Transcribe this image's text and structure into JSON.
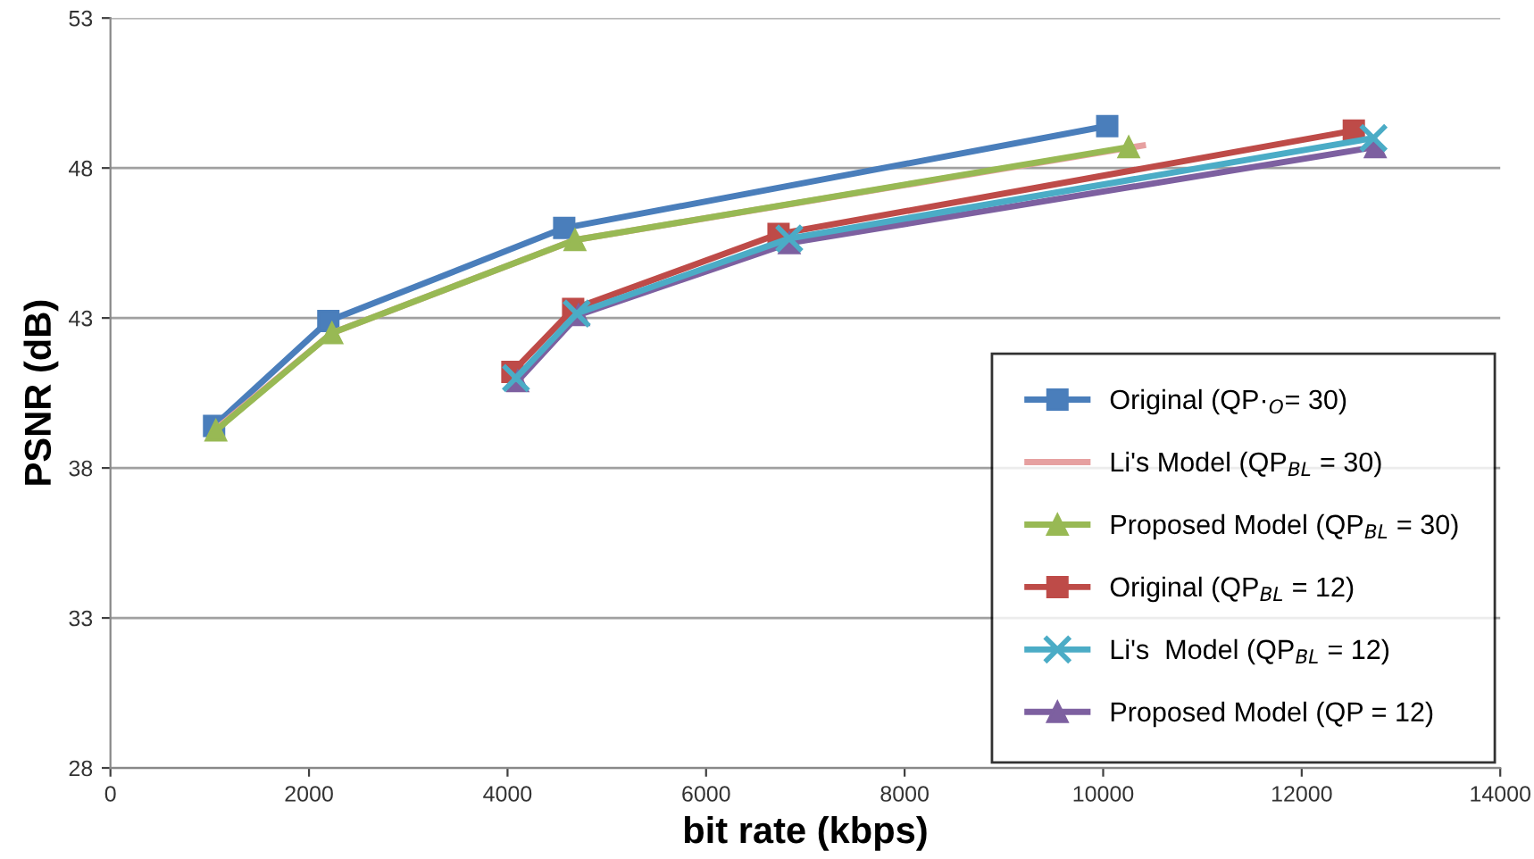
{
  "chart_data": {
    "type": "line",
    "xlabel": "bit rate (kbps)",
    "ylabel": "PSNR (dB)",
    "xlim": [
      0,
      14000
    ],
    "xticks": [
      0,
      2000,
      4000,
      6000,
      8000,
      10000,
      12000,
      14000
    ],
    "ylim": [
      28,
      53
    ],
    "yticks": [
      28,
      33,
      38,
      43,
      48,
      53
    ],
    "grid": "y",
    "legend": "bottom right",
    "line_style": "solid",
    "series": [
      {
        "name": "Original (QP·$_{O}$= 30)",
        "color": "#4a7ebb",
        "marker": "square",
        "x": [
          1044,
          2195,
          4571,
          10041
        ],
        "values": [
          39.4,
          42.9,
          46.0,
          49.4
        ]
      },
      {
        "name": "Li's Model (QP$_{BL}$ = 30)",
        "color": "#e6a0a0",
        "marker": "none",
        "x": [
          1062,
          2231,
          4679,
          10400
        ],
        "values": [
          39.3,
          42.5,
          45.6,
          48.75
        ]
      },
      {
        "name": "Proposed Model (QP$_{BL}$ = 30)",
        "color": "#98b954",
        "marker": "triangle",
        "x": [
          1062,
          2231,
          4679,
          10257
        ],
        "values": [
          39.25,
          42.5,
          45.6,
          48.7
        ]
      },
      {
        "name": "Original (QP$_{BL}$ = 12)",
        "color": "#be4b48",
        "marker": "square",
        "x": [
          4049,
          4661,
          6730,
          12525
        ],
        "values": [
          41.2,
          43.3,
          45.8,
          49.25
        ]
      },
      {
        "name": "Li's  Model (QP$_{BL}$ = 12)",
        "color": "#4bacc6",
        "marker": "cross",
        "x": [
          4085,
          4697,
          6838,
          12723
        ],
        "values": [
          41.0,
          43.15,
          45.65,
          49.0
        ]
      },
      {
        "name": "Proposed Model (QP = 12)",
        "color": "#7d60a0",
        "marker": "triangle",
        "x": [
          4103,
          4715,
          6838,
          12741
        ],
        "values": [
          40.9,
          43.1,
          45.5,
          48.7
        ]
      }
    ]
  }
}
